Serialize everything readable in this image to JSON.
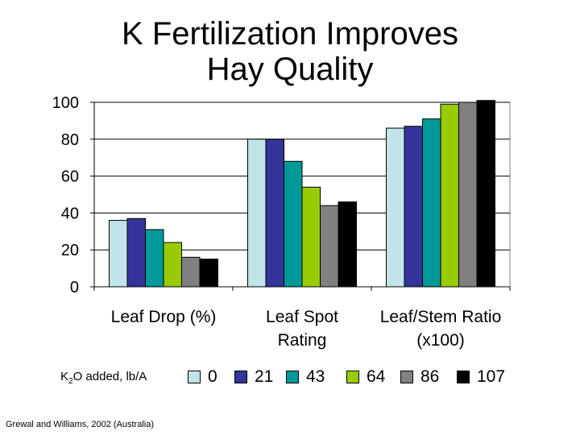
{
  "title_lines": [
    "K Fertilization Improves",
    "Hay Quality"
  ],
  "legend_caption": {
    "prefix": "K",
    "sub": "2",
    "suffix": "O added,  lb/A"
  },
  "source": "Grewal and Williams, 2002 (Australia)",
  "colors": {
    "series": [
      "#c0e4e8",
      "#333399",
      "#009999",
      "#99cc00",
      "#808080",
      "#000000"
    ],
    "gridline": "#000000",
    "plot_bg": "#ffffff"
  },
  "chart_data": {
    "type": "bar",
    "title": "K Fertilization Improves Hay Quality",
    "categories": [
      [
        "Leaf Drop (%)"
      ],
      [
        "Leaf Spot",
        "Rating"
      ],
      [
        "Leaf/Stem Ratio",
        "(x100)"
      ]
    ],
    "legend_position": "bottom",
    "grid": true,
    "ylim": [
      0,
      100
    ],
    "yticks": [
      0,
      20,
      40,
      60,
      80,
      100
    ],
    "series": [
      {
        "name": "0",
        "values": [
          36,
          80,
          86
        ]
      },
      {
        "name": "21",
        "values": [
          37,
          80,
          87
        ]
      },
      {
        "name": "43",
        "values": [
          31,
          68,
          91
        ]
      },
      {
        "name": "64",
        "values": [
          24,
          54,
          99
        ]
      },
      {
        "name": "86",
        "values": [
          16,
          44,
          100
        ]
      },
      {
        "name": "107",
        "values": [
          15,
          46,
          101
        ]
      }
    ]
  }
}
